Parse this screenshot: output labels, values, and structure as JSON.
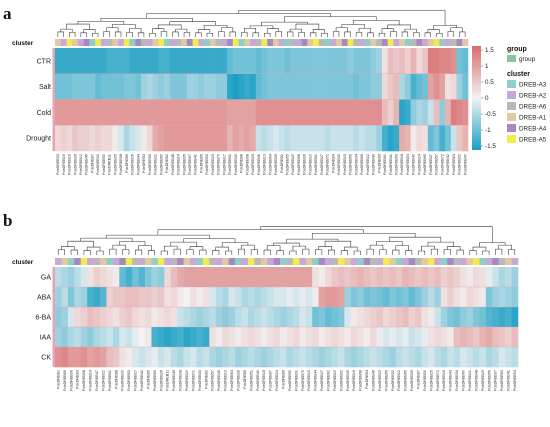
{
  "figure": {
    "panel_a_letter": "a",
    "panel_b_letter": "b"
  },
  "legend": {
    "scale_ticks": [
      "1.5",
      "1",
      "0.5",
      "0",
      "-0.5",
      "-1",
      "-1.5"
    ],
    "group_title": "group",
    "group_item": "group",
    "group_color": "#86c79f",
    "cluster_title": "cluster",
    "clusters": [
      {
        "name": "DREB-A3",
        "color": "#8ecfc7"
      },
      {
        "name": "DREB-A2",
        "color": "#c7a8d8"
      },
      {
        "name": "DREB-A6",
        "color": "#b9b9b9"
      },
      {
        "name": "DREB-A1",
        "color": "#e3c9a1"
      },
      {
        "name": "DREB-A4",
        "color": "#a58ac2"
      },
      {
        "name": "DREB-A5",
        "color": "#f2ec4e"
      }
    ]
  },
  "colors": {
    "low": "#1b9fc4",
    "mid": "#f3f3f3",
    "high": "#d96c6c",
    "row_bar": "#e6a5b6"
  },
  "chart_data": [
    {
      "type": "heatmap",
      "panel": "a",
      "cluster_label": "cluster",
      "rows": [
        "CTR",
        "Salt",
        "Cold",
        "Drought"
      ],
      "value_range": [
        -1.5,
        1.5
      ],
      "columns": 72,
      "column_labels": [
        "PdeDREB33",
        "PdeDREB19",
        "PdeDREB16",
        "PdeDREB28",
        "PdeDREB12",
        "PdeDREB45",
        "PdeDREB7",
        "PdeDREB32",
        "PdeDREB50",
        "PdeDREB11",
        "PdeDREB25",
        "PdeDREB38",
        "PdeDREB9",
        "PdeDREB29",
        "PdeDREB44",
        "PdeDREB3",
        "PdeDREB56",
        "PdeDREB21",
        "PdeDREB60",
        "PdeDREB2",
        "PdeDREB48",
        "PdeDREB14",
        "PdeDREB35",
        "PdeDREB67",
        "PdeDREB41",
        "PdeDREB5",
        "PdeDREB53",
        "PdeDREB23",
        "PdeDREB70",
        "PdeDREB17",
        "PdeDREB62",
        "PdeDREB30",
        "PdeDREB8",
        "PdeDREB58",
        "PdeDREB26",
        "PdeDREB46",
        "PdeDREB13",
        "PdeDREB64",
        "PdeDREB39",
        "PdeDREB1",
        "PdeDREB55",
        "PdeDREB20",
        "PdeDREB68",
        "PdeDREB36",
        "PdeDREB10",
        "PdeDREB51",
        "PdeDREB27",
        "PdeDREB71",
        "PdeDREB4",
        "PdeDREB43",
        "PdeDREB15",
        "PdeDREB59",
        "PdeDREB34",
        "PdeDREB66",
        "PdeDREB22",
        "PdeDREB49",
        "PdeDREB6",
        "PdeDREB61",
        "PdeDREB31",
        "PdeDREB69",
        "PdeDREB18",
        "PdeDREB54",
        "PdeDREB40",
        "PdeDREB24",
        "PdeDREB65",
        "PdeDREB37",
        "PdeDREB57",
        "PdeDREB72",
        "PdeDREB42",
        "PdeDREB63",
        "PdeDREB52",
        "PdeDREB47"
      ],
      "cluster_assignments": [
        3,
        1,
        5,
        3,
        1,
        4,
        0,
        5,
        1,
        2,
        3,
        1,
        5,
        0,
        4,
        2,
        1,
        3,
        5,
        0,
        1,
        2,
        3,
        4,
        5,
        1,
        0,
        3,
        2,
        1,
        4,
        5,
        0,
        3,
        1,
        2,
        5,
        4,
        3,
        1,
        0,
        2,
        1,
        4,
        3,
        5,
        2,
        0,
        1,
        3,
        4,
        5,
        2,
        1,
        0,
        3,
        2,
        4,
        5,
        1,
        3,
        0,
        2,
        4,
        1,
        3,
        5,
        0,
        1,
        2,
        4,
        3
      ],
      "values": [
        [
          -1.3,
          -1.3,
          -1.3,
          -1.3,
          -1.3,
          -1.3,
          -1.3,
          -1.3,
          -1.3,
          -1.2,
          -1.2,
          -1.2,
          -1.2,
          -1.3,
          -1.3,
          -1.3,
          -1.3,
          -1.3,
          -1.2,
          -1.2,
          -1.3,
          -1.3,
          -1.3,
          -1.3,
          -1.3,
          -1.3,
          -1.3,
          -1.3,
          -1.3,
          -1.3,
          -1.0,
          -0.9,
          -0.9,
          -0.9,
          -0.9,
          -1.0,
          -0.9,
          -0.8,
          -0.8,
          -0.8,
          -0.9,
          -0.8,
          -0.8,
          -0.8,
          -0.8,
          -0.8,
          -0.8,
          -0.8,
          -0.8,
          -0.8,
          -0.8,
          -0.7,
          -0.8,
          -0.8,
          -0.8,
          -0.7,
          -0.6,
          0.2,
          0.6,
          0.5,
          0.6,
          0.4,
          0.7,
          0.3,
          0.5,
          1.3,
          1.3,
          1.2,
          1.2,
          1.1,
          -0.9,
          -1.0
        ],
        [
          -0.9,
          -0.9,
          -0.9,
          -0.8,
          -0.8,
          -0.8,
          -0.8,
          -1.0,
          -0.9,
          -0.9,
          -0.9,
          -0.9,
          -0.8,
          -0.8,
          -0.9,
          -0.6,
          -0.5,
          -0.6,
          -0.7,
          -0.6,
          -0.8,
          -0.8,
          -0.8,
          -0.6,
          -0.6,
          -0.7,
          -0.6,
          -0.6,
          -0.7,
          -0.7,
          -1.4,
          -1.5,
          -1.4,
          -1.3,
          -1.4,
          -1.0,
          -0.9,
          -0.8,
          -0.8,
          -0.8,
          -0.8,
          -0.8,
          -0.8,
          -0.8,
          -0.8,
          -0.8,
          -0.8,
          -0.8,
          -0.8,
          -0.8,
          -0.8,
          -0.8,
          -0.9,
          -0.8,
          -0.8,
          -0.7,
          -0.7,
          0.3,
          0.5,
          0.6,
          -0.5,
          -0.7,
          -1.2,
          -1.0,
          -0.9,
          0.9,
          1.1,
          0.9,
          0.2,
          0.3,
          -0.6,
          -0.9
        ],
        [
          1.0,
          1.0,
          1.0,
          1.0,
          1.0,
          1.0,
          1.0,
          1.0,
          1.0,
          1.0,
          1.0,
          1.0,
          1.0,
          1.0,
          1.0,
          1.0,
          1.0,
          1.0,
          1.0,
          1.0,
          1.0,
          1.0,
          1.0,
          1.0,
          1.0,
          1.0,
          1.0,
          1.0,
          1.0,
          1.0,
          0.9,
          0.9,
          0.9,
          0.9,
          0.9,
          1.1,
          1.1,
          1.1,
          1.1,
          1.1,
          1.1,
          1.1,
          1.1,
          1.1,
          1.1,
          1.1,
          1.1,
          1.1,
          1.1,
          1.1,
          1.1,
          1.1,
          1.1,
          1.1,
          1.1,
          1.1,
          1.1,
          0.6,
          0.4,
          0.7,
          -1.4,
          -1.3,
          -0.7,
          -0.5,
          -0.6,
          -0.3,
          0.6,
          -0.7,
          0.7,
          1.3,
          1.2,
          1.1
        ],
        [
          0.3,
          0.4,
          0.3,
          0.5,
          0.4,
          0.4,
          0.3,
          0.4,
          0.3,
          0.3,
          0.1,
          -0.2,
          -0.5,
          -0.3,
          -0.2,
          0.1,
          0.3,
          0.8,
          0.9,
          1.0,
          1.0,
          1.0,
          1.0,
          1.0,
          1.0,
          1.0,
          1.0,
          1.0,
          1.0,
          1.0,
          0.7,
          0.9,
          0.8,
          0.9,
          0.8,
          -0.3,
          -0.4,
          -0.3,
          -0.2,
          -0.3,
          -0.4,
          -0.3,
          -0.3,
          -0.3,
          -0.3,
          -0.3,
          -0.3,
          -0.4,
          -0.3,
          -0.3,
          -0.3,
          -0.3,
          -0.4,
          -0.3,
          -0.4,
          -0.4,
          -0.6,
          -1.2,
          -1.4,
          -1.3,
          0.8,
          0.7,
          0.1,
          0.3,
          0.2,
          -1.0,
          -0.8,
          -1.2,
          -0.9,
          -0.3,
          0.5,
          0.7
        ]
      ]
    },
    {
      "type": "heatmap",
      "panel": "b",
      "cluster_label": "cluster",
      "rows": [
        "GA",
        "ABA",
        "6-BA",
        "IAA",
        "CK"
      ],
      "value_range": [
        -1.5,
        1.5
      ],
      "columns": 72,
      "column_labels": [
        "PdeDREB1",
        "PdeDREB69",
        "PdeDREB36",
        "PdeDREB3",
        "PdeDREB58",
        "PdeDREB14",
        "PdeDREB47",
        "PdeDREB22",
        "PdeDREB61",
        "PdeDREB8",
        "PdeDREB30",
        "PdeDREB53",
        "PdeDREB17",
        "PdeDREB42",
        "PdeDREB5",
        "PdeDREB66",
        "PdeDREB26",
        "PdeDREB11",
        "PdeDREB49",
        "PdeDREB38",
        "PdeDREB20",
        "PdeDREB71",
        "PdeDREB33",
        "PdeDREB2",
        "PdeDREB57",
        "PdeDREB45",
        "PdeDREB13",
        "PdeDREB64",
        "PdeDREB28",
        "PdeDREB9",
        "PdeDREB51",
        "PdeDREB40",
        "PdeDREB18",
        "PdeDREB67",
        "PdeDREB24",
        "PdeDREB6",
        "PdeDREB55",
        "PdeDREB31",
        "PdeDREB70",
        "PdeDREB15",
        "PdeDREB44",
        "PdeDREB27",
        "PdeDREB62",
        "PdeDREB10",
        "PdeDREB52",
        "PdeDREB35",
        "PdeDREB19",
        "PdeDREB68",
        "PdeDREB4",
        "PdeDREB46",
        "PdeDREB23",
        "PdeDREB59",
        "PdeDREB32",
        "PdeDREB12",
        "PdeDREB65",
        "PdeDREB39",
        "PdeDREB7",
        "PdeDREB50",
        "PdeDREB25",
        "PdeDREB72",
        "PdeDREB16",
        "PdeDREB43",
        "PdeDREB34",
        "PdeDREB60",
        "PdeDREB21",
        "PdeDREB48",
        "PdeDREB29",
        "PdeDREB56",
        "PdeDREB37",
        "PdeDREB63",
        "PdeDREB41",
        "PdeDREB54"
      ],
      "cluster_assignments": [
        1,
        3,
        0,
        4,
        5,
        1,
        2,
        3,
        0,
        1,
        4,
        5,
        2,
        1,
        3,
        0,
        5,
        1,
        2,
        4,
        3,
        1,
        0,
        5,
        2,
        1,
        3,
        4,
        0,
        1,
        5,
        2,
        3,
        1,
        4,
        0,
        2,
        5,
        1,
        3,
        0,
        4,
        1,
        2,
        5,
        3,
        1,
        0,
        4,
        2,
        1,
        5,
        3,
        0,
        1,
        4,
        2,
        3,
        5,
        1,
        0,
        4,
        2,
        1,
        3,
        5,
        0,
        1,
        4,
        2,
        3,
        1
      ],
      "values": [
        [
          -0.4,
          -0.5,
          -0.6,
          -0.4,
          -0.2,
          0.2,
          0.4,
          0.3,
          0.2,
          0.1,
          -1.0,
          -1.2,
          -0.9,
          -1.1,
          -0.8,
          -0.6,
          -0.7,
          0.3,
          0.6,
          0.8,
          0.9,
          0.9,
          0.9,
          0.9,
          0.9,
          0.9,
          0.9,
          0.9,
          0.9,
          0.9,
          0.9,
          0.9,
          0.9,
          0.9,
          0.9,
          0.9,
          0.9,
          0.9,
          0.9,
          0.9,
          0.2,
          0.1,
          0.3,
          0.5,
          0.6,
          0.5,
          0.6,
          0.7,
          0.6,
          0.5,
          0.6,
          0.5,
          0.6,
          0.5,
          0.7,
          0.6,
          0.5,
          0.6,
          0.5,
          0.6,
          0.4,
          0.5,
          0.4,
          0.2,
          0.1,
          0.3,
          0.2,
          -0.1,
          -0.3,
          -0.5,
          -0.4,
          -0.6
        ],
        [
          -0.6,
          -0.4,
          -0.8,
          -0.5,
          -0.6,
          -1.2,
          -1.3,
          -1.1,
          0.4,
          0.5,
          0.5,
          0.6,
          0.6,
          0.5,
          0.5,
          0.4,
          0.5,
          0.2,
          0.3,
          0.1,
          0.0,
          0.2,
          0.1,
          0.2,
          -0.2,
          -0.4,
          -0.5,
          -0.2,
          -0.3,
          -0.5,
          -0.4,
          -0.5,
          -0.4,
          -0.3,
          -0.2,
          -0.2,
          -0.1,
          -0.2,
          -0.1,
          -0.2,
          0.1,
          0.9,
          1.0,
          1.0,
          0.9,
          -0.6,
          -0.8,
          -0.7,
          -0.9,
          -0.8,
          -0.9,
          -1.0,
          -0.8,
          -0.9,
          -0.8,
          -1.0,
          -0.8,
          -0.6,
          -0.4,
          -0.6,
          0.2,
          0.4,
          0.2,
          0.1,
          0.3,
          0.2,
          0.1,
          -0.8,
          -0.6,
          -0.5,
          -0.6,
          -0.7
        ],
        [
          -0.7,
          -0.6,
          -0.2,
          0.3,
          0.4,
          0.6,
          0.5,
          0.4,
          0.3,
          0.2,
          0.4,
          0.5,
          0.3,
          0.2,
          0.3,
          0.1,
          0.2,
          0.3,
          0.2,
          -0.3,
          -0.4,
          -0.5,
          -0.6,
          -0.5,
          -0.4,
          -0.6,
          -0.7,
          -0.6,
          -0.4,
          -0.3,
          -0.5,
          -0.4,
          -0.3,
          -0.4,
          -0.5,
          -0.6,
          -0.5,
          -0.4,
          -0.2,
          -0.3,
          -0.9,
          -0.8,
          -1.0,
          -0.9,
          -0.8,
          -0.2,
          0.1,
          0.2,
          0.3,
          0.4,
          0.5,
          0.3,
          0.4,
          0.5,
          0.6,
          0.4,
          0.5,
          0.2,
          0.1,
          -0.3,
          -0.6,
          -0.8,
          -0.9,
          -0.7,
          -0.6,
          -0.8,
          -0.9,
          -1.1,
          -1.2,
          -1.3,
          -1.2,
          -1.4
        ],
        [
          -0.6,
          -0.7,
          -0.5,
          -0.4,
          -0.6,
          -0.7,
          -0.5,
          -0.4,
          -0.3,
          -0.5,
          -0.2,
          -0.3,
          -0.1,
          0.0,
          0.1,
          -1.2,
          -1.3,
          -1.4,
          -1.3,
          -1.2,
          -1.4,
          -1.3,
          -1.2,
          -1.3,
          0.2,
          0.1,
          0.3,
          0.2,
          0.1,
          0.2,
          0.3,
          0.2,
          0.1,
          0.2,
          0.3,
          0.1,
          0.2,
          0.3,
          0.1,
          0.2,
          0.3,
          0.1,
          0.2,
          0.3,
          0.2,
          0.1,
          0.3,
          0.2,
          0.1,
          0.3,
          -0.1,
          -0.2,
          -0.1,
          -0.2,
          -0.1,
          -0.3,
          -0.2,
          -0.1,
          0.2,
          0.3,
          0.2,
          0.1,
          0.6,
          0.7,
          0.6,
          0.5,
          0.7,
          0.8,
          0.6,
          0.5,
          0.4,
          0.6
        ],
        [
          1.1,
          1.2,
          1.0,
          1.0,
          1.1,
          0.9,
          1.0,
          0.9,
          0.6,
          0.5,
          0.2,
          0.1,
          -0.2,
          -0.3,
          -0.2,
          -0.1,
          -0.3,
          -0.2,
          -0.4,
          -0.5,
          -0.3,
          -0.2,
          -0.4,
          -0.3,
          -0.5,
          -0.6,
          -0.5,
          -0.4,
          -0.6,
          -0.5,
          -0.4,
          -0.5,
          -0.6,
          -0.5,
          -0.4,
          -0.3,
          -0.5,
          -0.4,
          -0.3,
          -0.4,
          -0.5,
          -0.6,
          -0.5,
          -0.4,
          -0.3,
          -0.5,
          -0.6,
          -0.5,
          -0.4,
          -0.3,
          -0.4,
          -0.5,
          -0.6,
          -0.4,
          -0.3,
          -0.4,
          -0.5,
          -0.3,
          -0.2,
          -0.4,
          -0.5,
          -0.3,
          -0.4,
          -0.2,
          -0.3,
          -0.4,
          -0.3,
          -0.5,
          -0.4,
          -0.2,
          -0.3,
          -0.4
        ]
      ]
    }
  ]
}
